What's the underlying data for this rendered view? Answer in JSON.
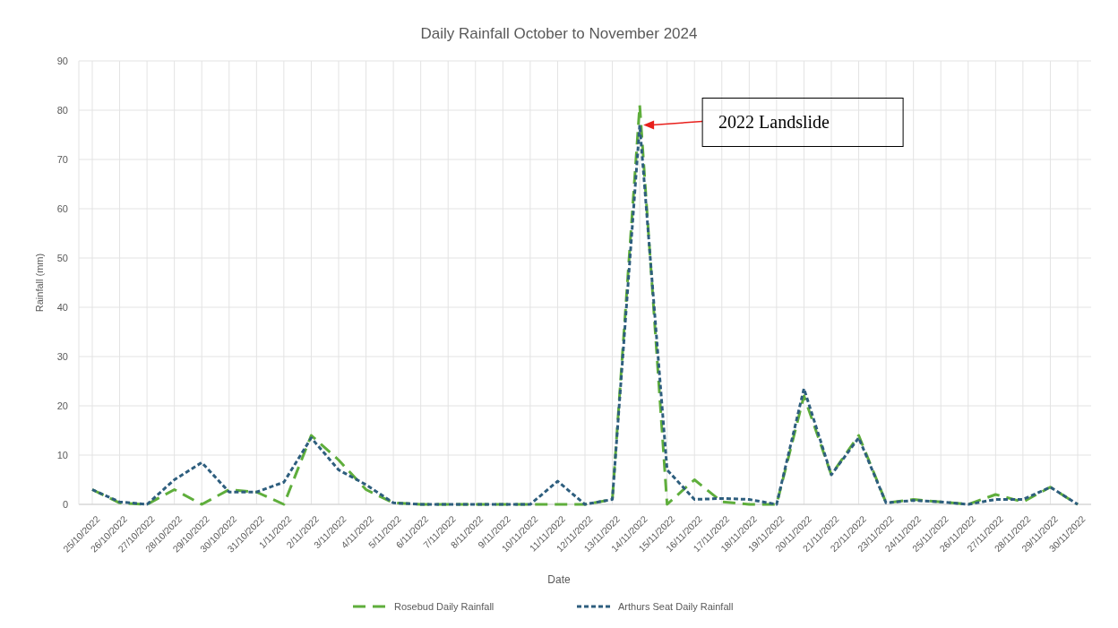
{
  "chart_data": {
    "type": "line",
    "title": "Daily Rainfall October to November 2024",
    "xlabel": "Date",
    "ylabel": "Rainfall (mm)",
    "categories": [
      "25/10/2022",
      "26/10/2022",
      "27/10/2022",
      "28/10/2022",
      "29/10/2022",
      "30/10/2022",
      "31/10/2022",
      "1/11/2022",
      "2/11/2022",
      "3/11/2022",
      "4/11/2022",
      "5/11/2022",
      "6/11/2022",
      "7/11/2022",
      "8/11/2022",
      "9/11/2022",
      "10/11/2022",
      "11/11/2022",
      "12/11/2022",
      "13/11/2022",
      "14/11/2022",
      "15/11/2022",
      "16/11/2022",
      "17/11/2022",
      "18/11/2022",
      "19/11/2022",
      "20/11/2022",
      "21/11/2022",
      "22/11/2022",
      "23/11/2022",
      "24/11/2022",
      "25/11/2022",
      "26/11/2022",
      "27/11/2022",
      "28/11/2022",
      "29/11/2022",
      "30/11/2022"
    ],
    "series": [
      {
        "name": "Rosebud Daily Rainfall",
        "color": "#5fae3c",
        "line_style": "dashed",
        "values": [
          3,
          0.3,
          0,
          3,
          0,
          3,
          2.5,
          0,
          14,
          9,
          3,
          0.3,
          0,
          0,
          0,
          0,
          0,
          0,
          0,
          1,
          81,
          0,
          5,
          0.5,
          0,
          0,
          22,
          6,
          14,
          0.3,
          1,
          0.5,
          0,
          2,
          0.5,
          3.5,
          0
        ]
      },
      {
        "name": "Arthurs Seat Daily Rainfall",
        "color": "#2e5e7e",
        "line_style": "dotted",
        "values": [
          3,
          0.5,
          0,
          5,
          8.5,
          2.5,
          2.5,
          4.5,
          13.5,
          7,
          4,
          0.3,
          0,
          0,
          0,
          0,
          0,
          4.7,
          0,
          1,
          77,
          7,
          1,
          1.2,
          1,
          0,
          23.5,
          6,
          13.5,
          0.3,
          0.8,
          0.5,
          0,
          1,
          1,
          3.5,
          0
        ]
      }
    ],
    "ylim": [
      0,
      90
    ],
    "yticks": [
      0,
      10,
      20,
      30,
      40,
      50,
      60,
      70,
      80,
      90
    ],
    "grid": true,
    "legend": "bottom",
    "marker": "none",
    "annotations": [
      "2022 Landslide"
    ]
  }
}
